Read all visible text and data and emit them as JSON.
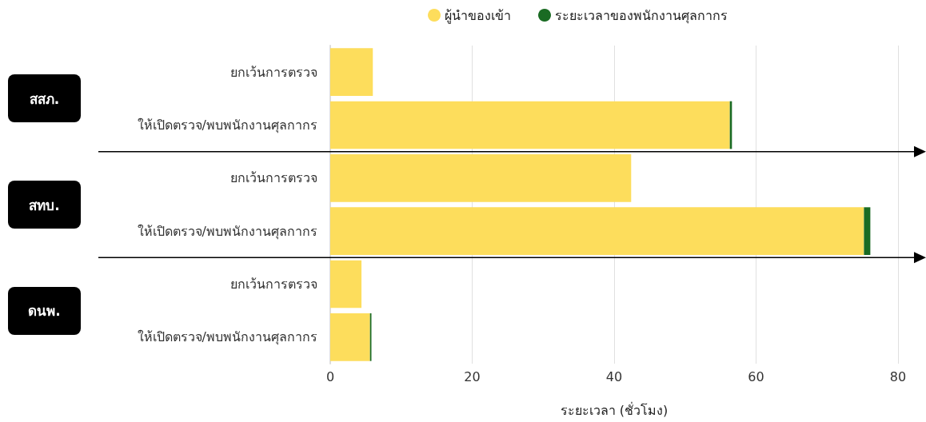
{
  "chart_data": {
    "type": "bar",
    "orientation": "horizontal",
    "stacked": true,
    "categories": [
      "ยกเว้นการตรวจ",
      "ให้เปิดตรวจ/พบพนักงานศุลกากร",
      "ยกเว้นการตรวจ",
      "ให้เปิดตรวจ/พบพนักงานศุลกากร",
      "ยกเว้นการตรวจ",
      "ให้เปิดตรวจ/พบพนักงานศุลกากร"
    ],
    "series": [
      {
        "name": "ผู้นำของเข้า",
        "color": "#fddd5c",
        "values": [
          6.0,
          56.3,
          42.4,
          75.2,
          4.4,
          5.6
        ]
      },
      {
        "name": "ระยะเวลาของพนักงานศุลกากร",
        "color": "#1a6b23",
        "values": [
          null,
          0.3,
          null,
          0.9,
          null,
          0.2
        ]
      }
    ],
    "xlabel": "ระยะเวลา (ชั่วโมง)",
    "xlim": [
      0,
      80
    ],
    "xticks": [
      0,
      20,
      40,
      60,
      80
    ],
    "grid": "x",
    "legend": "top",
    "annotations": [
      "สสภ.",
      "สทบ.",
      "ดนพ."
    ]
  }
}
